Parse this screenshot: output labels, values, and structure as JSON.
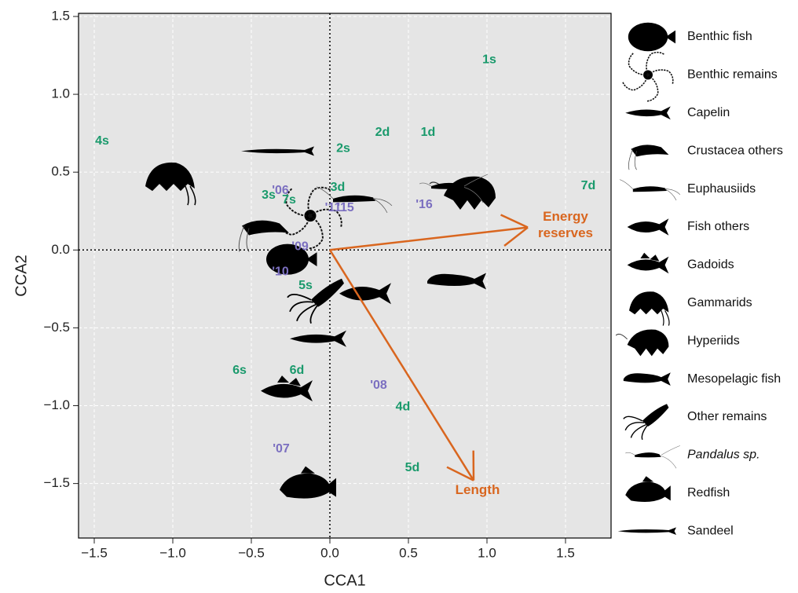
{
  "chart_data": {
    "type": "ordination",
    "x_label": "CCA1",
    "y_label": "CCA2",
    "xlim": [
      -1.6,
      1.79
    ],
    "ylim": [
      -1.85,
      1.52
    ],
    "xticks": [
      {
        "value": -1.5,
        "label": "−1.5"
      },
      {
        "value": -1,
        "label": "−1.0"
      },
      {
        "value": -0.5,
        "label": "−0.5"
      },
      {
        "value": 0,
        "label": "0.0"
      },
      0.5,
      {
        "value": 1,
        "label": "1.0"
      },
      1.5
    ],
    "yticks": [
      {
        "value": -1.5,
        "label": "−1.5"
      },
      {
        "value": -1,
        "label": "−1.0"
      },
      {
        "value": -0.5,
        "label": "−0.5"
      },
      {
        "value": 0,
        "label": "0.0"
      },
      0.5,
      {
        "value": 1,
        "label": "1.0"
      },
      1.5
    ],
    "grid": true,
    "sites": {
      "color": "#1a9a6c",
      "labels": [
        "1s",
        "4s",
        "2d",
        "1d",
        "2s",
        "7d",
        "3d",
        "3s",
        "7s",
        "5s",
        "6s",
        "6d",
        "4d",
        "5d"
      ],
      "x": [
        1.015,
        -1.45,
        0.335,
        0.625,
        0.085,
        1.645,
        0.05,
        -0.39,
        -0.26,
        -0.155,
        -0.575,
        -0.21,
        0.465,
        0.525
      ],
      "y": [
        1.22,
        0.7,
        0.755,
        0.755,
        0.65,
        0.41,
        0.4,
        0.35,
        0.32,
        -0.23,
        -0.775,
        -0.775,
        -1.01,
        -1.4
      ]
    },
    "years": {
      "color": "#7b6fc0",
      "labels": [
        "'06",
        "'11",
        "'15",
        "'16",
        "'09",
        "'10",
        "'08",
        "'07"
      ],
      "x": [
        -0.315,
        0.02,
        0.1,
        0.6,
        -0.19,
        -0.315,
        0.31,
        -0.31
      ],
      "y": [
        0.38,
        0.27,
        0.27,
        0.29,
        0.02,
        -0.14,
        -0.87,
        -1.28
      ]
    },
    "arrows": {
      "color": "#d9661f",
      "names": [
        "Energy reserves",
        "Length"
      ],
      "x": [
        1.26,
        0.915
      ],
      "y": [
        0.145,
        -1.48
      ]
    },
    "species": {
      "names": [
        "Benthic fish",
        "Benthic remains",
        "Capelin",
        "Crustacea others",
        "Euphausiids",
        "Fish others",
        "Gadoids",
        "Gammarids",
        "Hyperiids",
        "Mesopelagic fish",
        "Other remains",
        "Pandalus sp.",
        "Redfish",
        "Sandeel"
      ],
      "x": [
        -0.27,
        -0.125,
        -0.075,
        -0.425,
        0.14,
        0.225,
        -0.275,
        -1.025,
        0.89,
        0.815,
        -0.075,
        0.75,
        -0.14,
        -0.325
      ],
      "y": [
        -0.06,
        0.22,
        -0.57,
        0.14,
        0.33,
        -0.28,
        -0.905,
        0.47,
        0.38,
        -0.2,
        -0.29,
        0.41,
        -1.525,
        0.635
      ]
    }
  }
}
